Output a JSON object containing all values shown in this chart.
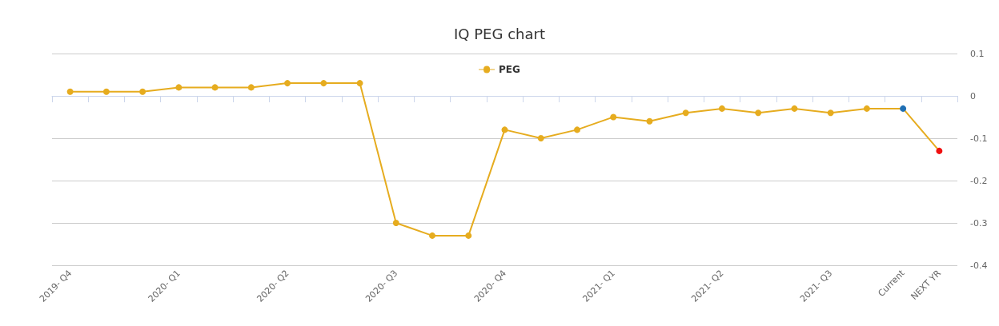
{
  "chart_data": {
    "type": "line",
    "title": "IQ PEG chart",
    "categories": [
      "2019- Q4",
      null,
      null,
      "2020- Q1",
      null,
      null,
      "2020- Q2",
      null,
      null,
      "2020- Q3",
      null,
      null,
      "2020- Q4",
      null,
      null,
      "2021- Q1",
      null,
      null,
      "2021- Q2",
      null,
      null,
      "2021- Q3",
      null,
      "Current",
      "NEXT YR"
    ],
    "series": [
      {
        "name": "PEG",
        "color": "#e6ac1f",
        "values": [
          0.01,
          0.01,
          0.01,
          0.02,
          0.02,
          0.02,
          0.03,
          0.03,
          0.03,
          -0.3,
          -0.33,
          -0.33,
          -0.08,
          -0.1,
          -0.08,
          -0.05,
          -0.06,
          -0.04,
          -0.03,
          -0.04,
          -0.03,
          -0.04,
          -0.03,
          -0.03,
          -0.13
        ],
        "colors": [
          "#e6ac1f",
          "#e6ac1f",
          "#e6ac1f",
          "#e6ac1f",
          "#e6ac1f",
          "#e6ac1f",
          "#e6ac1f",
          "#e6ac1f",
          "#e6ac1f",
          "#e6ac1f",
          "#e6ac1f",
          "#e6ac1f",
          "#e6ac1f",
          "#e6ac1f",
          "#e6ac1f",
          "#e6ac1f",
          "#e6ac1f",
          "#e6ac1f",
          "#e6ac1f",
          "#e6ac1f",
          "#e6ac1f",
          "#e6ac1f",
          "#e6ac1f",
          "#1f6fb4",
          "#f01010"
        ]
      }
    ],
    "ylim": [
      -0.4,
      0.1
    ],
    "yticks": [
      -0.4,
      -0.3,
      -0.2,
      -0.1,
      0,
      0.1
    ],
    "grid": "y",
    "legend": "top",
    "marker": "circle",
    "line_style": "solid"
  }
}
